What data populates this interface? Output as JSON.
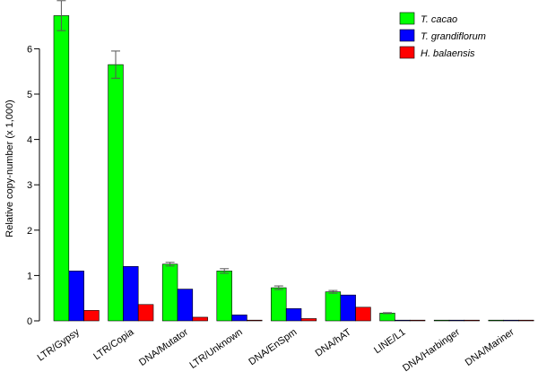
{
  "chart_data": {
    "type": "bar",
    "ylabel": "Relative copy-number (x 1,000)",
    "ylim": [
      0,
      6.9
    ],
    "yticks": [
      0,
      1,
      2,
      3,
      4,
      5,
      6
    ],
    "categories": [
      "LTR/Gypsy",
      "LTR/Copia",
      "DNA/Mutator",
      "LTR/Unknown",
      "DNA/EnSpm",
      "DNA/hAT",
      "LINE/L1",
      "DNA/Harbinger",
      "DNA/Mariner"
    ],
    "series": [
      {
        "name": "T. cacao",
        "color": "#00ff00",
        "values": [
          6.73,
          5.65,
          1.25,
          1.1,
          0.73,
          0.64,
          0.17,
          0.015,
          0.01
        ],
        "errors": [
          0.33,
          0.3,
          0.04,
          0.05,
          0.04,
          0.03,
          0.01,
          0.0,
          0.0
        ]
      },
      {
        "name": "T. grandiflorum",
        "color": "#0000ff",
        "values": [
          1.1,
          1.2,
          0.7,
          0.13,
          0.27,
          0.57,
          0.012,
          0.012,
          0.0
        ],
        "errors": [
          0,
          0,
          0,
          0,
          0,
          0,
          0,
          0,
          0
        ]
      },
      {
        "name": "H. balaensis",
        "color": "#ff0000",
        "values": [
          0.23,
          0.36,
          0.08,
          0.01,
          0.05,
          0.3,
          0.0,
          0.012,
          0.0
        ],
        "errors": [
          0,
          0,
          0,
          0,
          0,
          0,
          0,
          0,
          0
        ]
      }
    ],
    "legend_position": "top-right",
    "grid": false
  }
}
